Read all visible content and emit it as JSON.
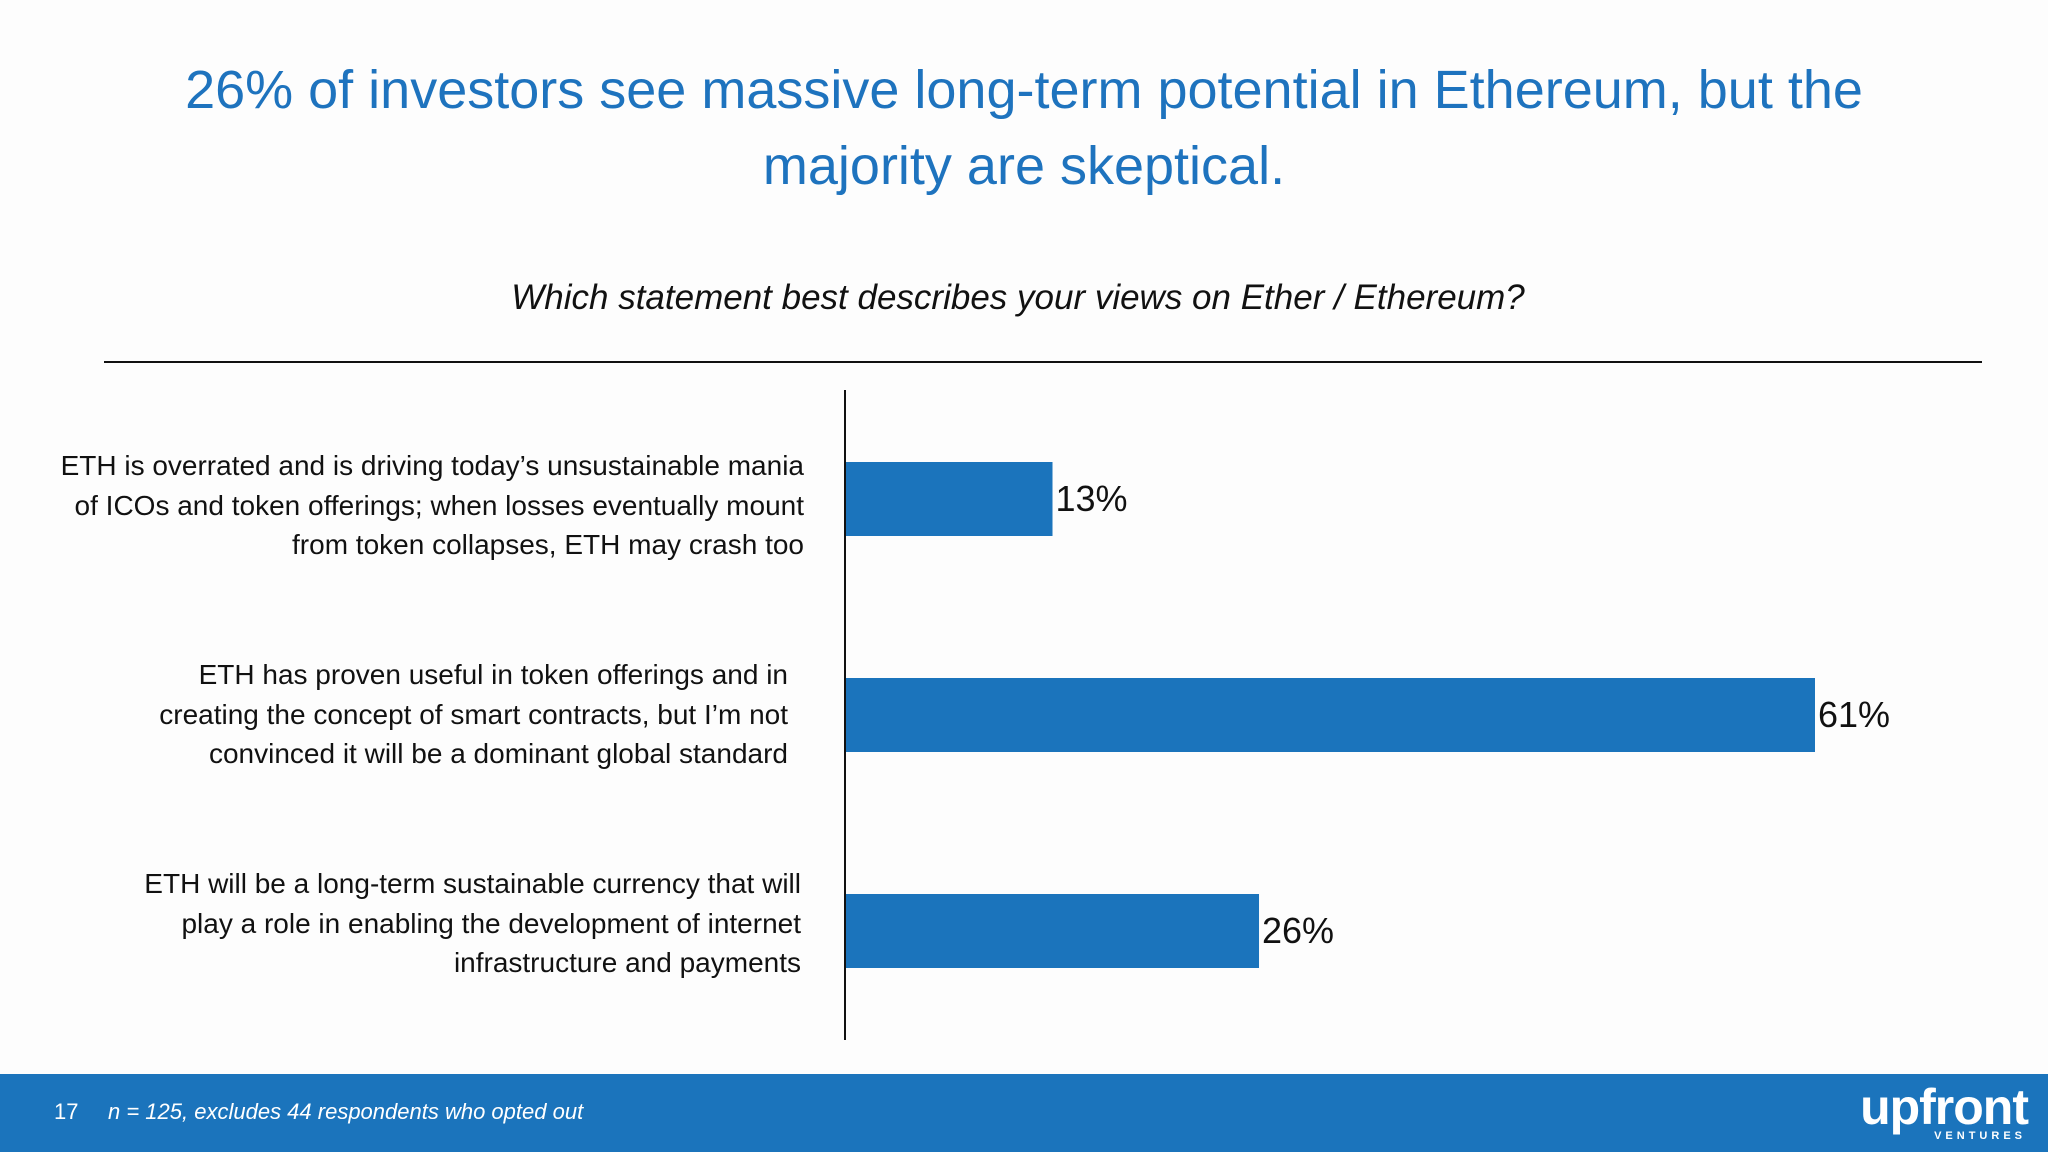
{
  "slide": {
    "title_lines": [
      "26% of investors see massive long-term potential in Ethereum, but the",
      "majority are skeptical."
    ],
    "question": "Which statement best describes your views on Ether / Ethereum?",
    "page_number": "17",
    "footnote": "n = 125, excludes 44 respondents who opted out",
    "brand": {
      "logo_word": "upfront",
      "logo_sub": "VENTURES"
    },
    "colors": {
      "title": "#1e73be",
      "bar": "#1b74bc",
      "footer": "#1b74bc"
    }
  },
  "chart_data": {
    "type": "bar",
    "orientation": "horizontal",
    "title": "Which statement best describes your views on Ether / Ethereum?",
    "xlabel": "",
    "ylabel": "",
    "xlim": [
      0,
      61
    ],
    "grid": false,
    "categories": [
      {
        "lines": [
          "ETH is overrated and  is driving today’s unsustainable mania",
          "of ICOs and token offerings; when losses eventually mount",
          "from token collapses, ETH may crash too"
        ]
      },
      {
        "lines": [
          "ETH has proven useful in token offerings and in",
          "creating the concept of smart contracts, but I’m not",
          "convinced it will be a dominant global standard"
        ]
      },
      {
        "lines": [
          "ETH will be a long-term sustainable currency that will",
          "play a role in enabling the development of internet",
          "infrastructure and payments"
        ]
      }
    ],
    "values": [
      13,
      61,
      26
    ],
    "value_labels": [
      "13%",
      "61%",
      "26%"
    ]
  }
}
